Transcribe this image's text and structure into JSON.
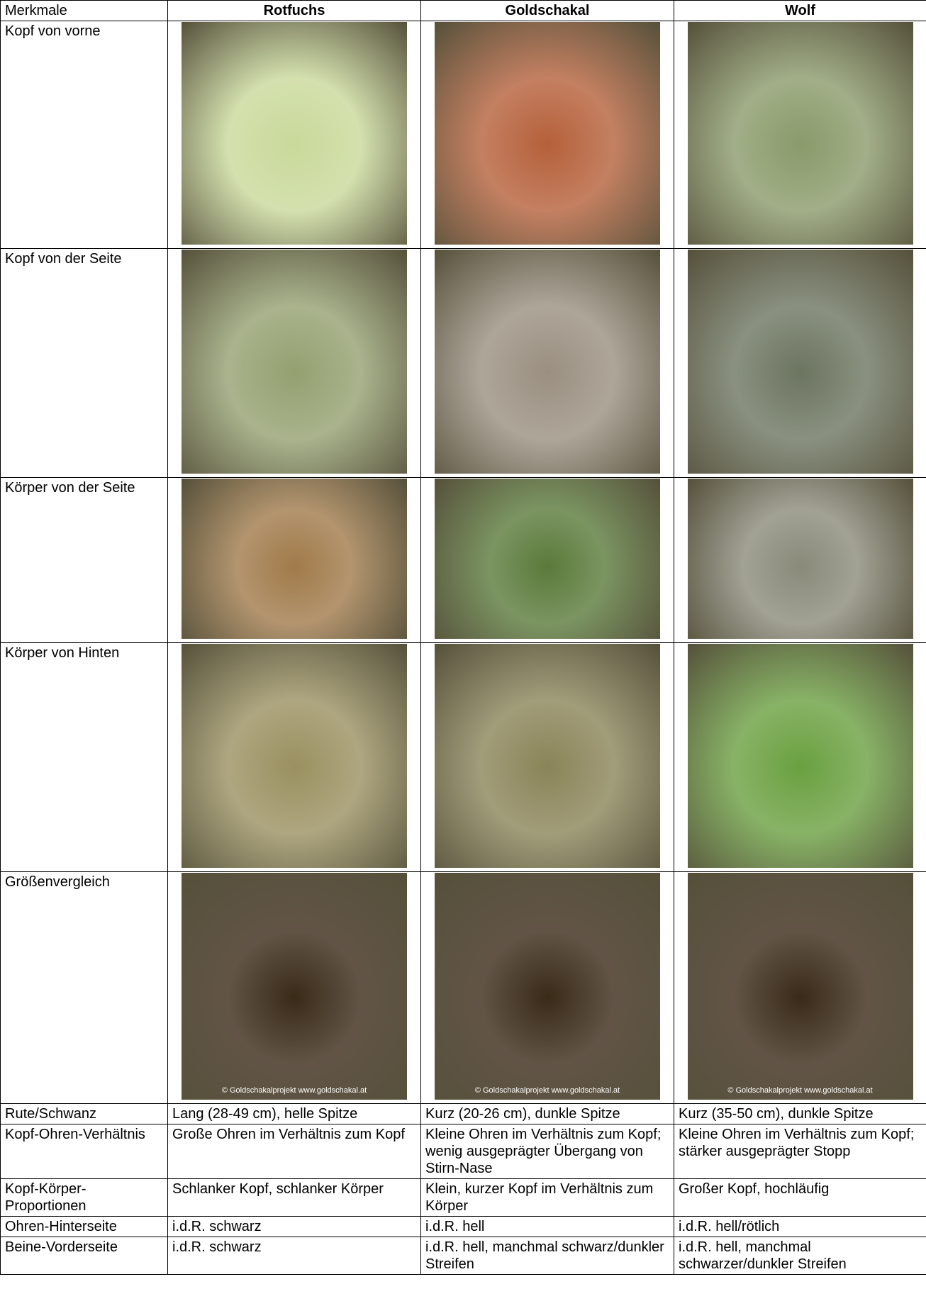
{
  "table": {
    "header": [
      "Merkmale",
      "Rotfuchs",
      "Goldschakal",
      "Wolf"
    ],
    "image_rows": [
      {
        "label": "Kopf von vorne"
      },
      {
        "label": "Kopf von der Seite"
      },
      {
        "label": "Körper von der Seite"
      },
      {
        "label": "Körper von Hinten"
      },
      {
        "label": "Größenvergleich",
        "captions": [
          "© Goldschakalprojekt www.goldschakal.at",
          "© Goldschakalprojekt www.goldschakal.at",
          "© Goldschakalprojekt www.goldschakal.at"
        ]
      }
    ],
    "text_rows": [
      [
        "Rute/Schwanz",
        "Lang (28-49 cm), helle Spitze",
        "Kurz (20-26 cm), dunkle Spitze",
        "Kurz (35-50 cm), dunkle Spitze"
      ],
      [
        "Kopf-Ohren-Verhältnis",
        "Große Ohren im Verhältnis zum Kopf",
        "Kleine Ohren im Verhältnis zum Kopf; wenig ausgeprägter Übergang von Stirn-Nase",
        "Kleine Ohren im Verhältnis zum Kopf; stärker ausgeprägter Stopp"
      ],
      [
        "Kopf-Körper-Proportionen",
        "Schlanker Kopf, schlanker Körper",
        "Klein, kurzer Kopf im Verhältnis zum Körper",
        "Großer Kopf, hochläufig"
      ],
      [
        "Ohren-Hinterseite",
        "i.d.R. schwarz",
        "i.d.R. hell",
        "i.d.R. hell/rötlich"
      ],
      [
        "Beine-Vorderseite",
        "i.d.R. schwarz",
        "i.d.R. hell, manchmal schwarz/dunkler Streifen",
        "i.d.R. hell, manchmal schwarzer/dunkler Streifen"
      ]
    ]
  }
}
